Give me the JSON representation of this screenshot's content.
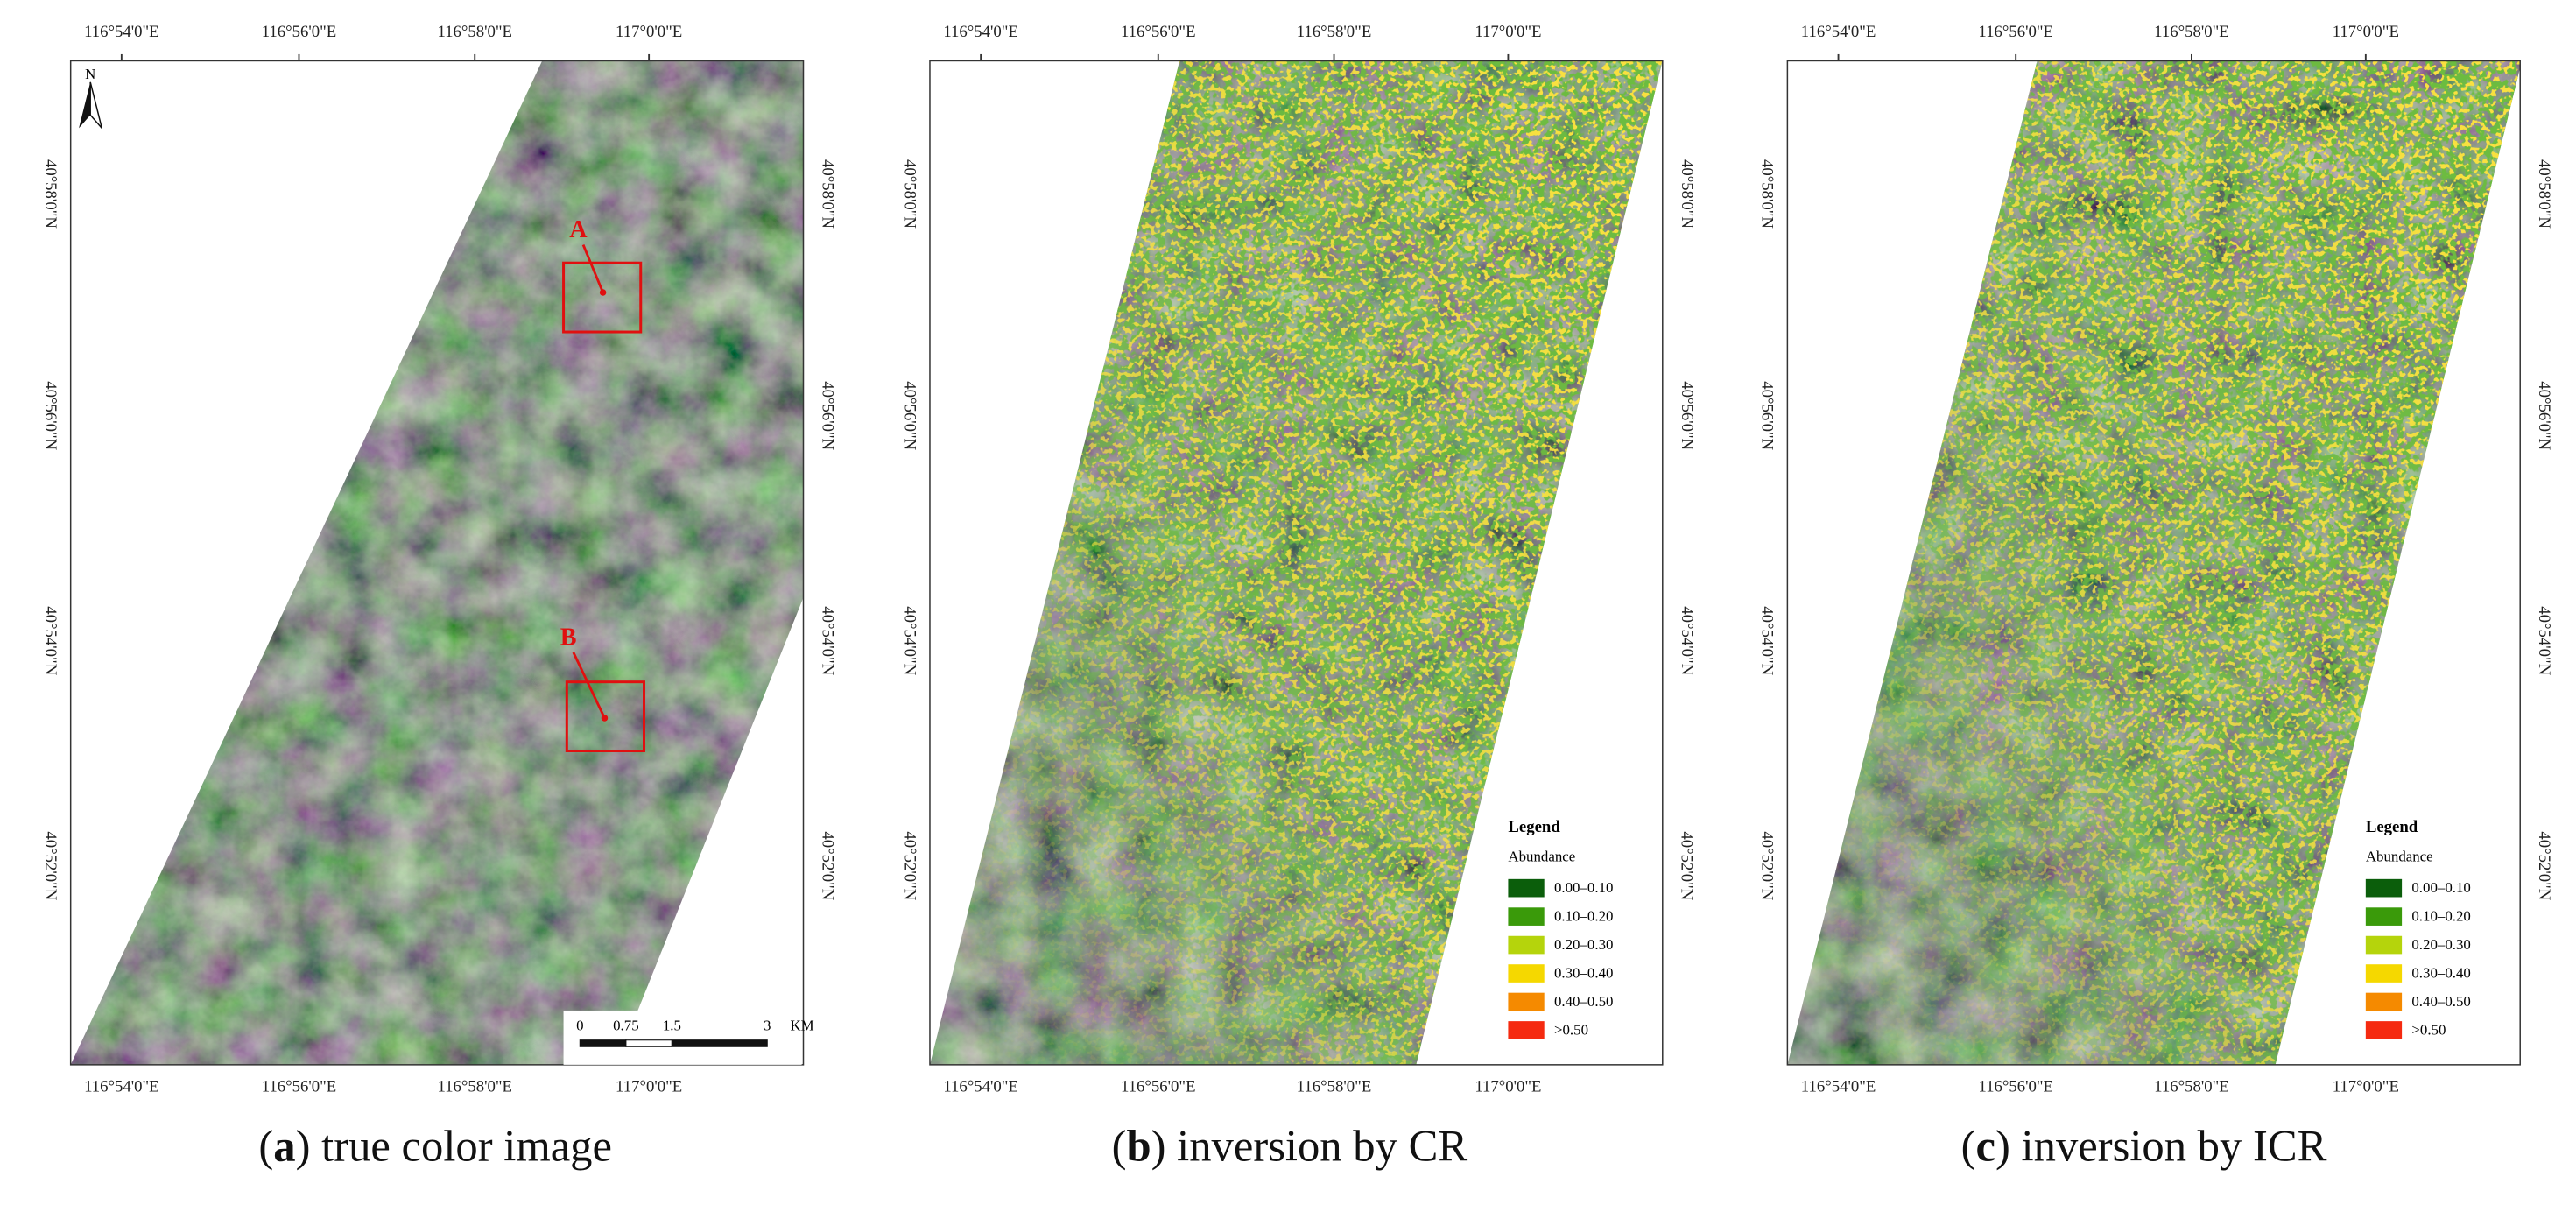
{
  "panels": [
    {
      "caption": {
        "open": "(",
        "letter": "a",
        "rest": ") true color image"
      },
      "top_ticks": [
        "116°54'0\"E",
        "116°56'0\"E",
        "116°58'0\"E",
        "117°0'0\"E"
      ],
      "bottom_ticks": [
        "116°54'0\"E",
        "116°56'0\"E",
        "116°58'0\"E",
        "117°0'0\"E"
      ],
      "left_ticks": [
        "40°58'0\"N",
        "40°56'0\"N",
        "40°54'0\"N",
        "40°52'0\"N"
      ],
      "right_ticks": [
        "40°58'0\"N",
        "40°56'0\"N",
        "40°54'0\"N",
        "40°52'0\"N"
      ],
      "north": "N",
      "annotations": [
        "A",
        "B"
      ],
      "scalebar": [
        "0",
        "0.75",
        "1.5",
        "3",
        "KM"
      ]
    },
    {
      "caption": {
        "open": "(",
        "letter": "b",
        "rest": ") inversion by CR"
      },
      "top_ticks": [
        "116°54'0\"E",
        "116°56'0\"E",
        "116°58'0\"E",
        "117°0'0\"E"
      ],
      "bottom_ticks": [
        "116°54'0\"E",
        "116°56'0\"E",
        "116°58'0\"E",
        "117°0'0\"E"
      ],
      "left_ticks": [
        "40°58'0\"N",
        "40°56'0\"N",
        "40°54'0\"N",
        "40°52'0\"N"
      ],
      "right_ticks": [
        "40°58'0\"N",
        "40°56'0\"N",
        "40°54'0\"N",
        "40°52'0\"N"
      ],
      "legend": {
        "title": "Legend",
        "subtitle": "Abundance",
        "items": [
          {
            "label": "0.00–0.10",
            "color": "#0b5e0b"
          },
          {
            "label": "0.10–0.20",
            "color": "#3a9a0a"
          },
          {
            "label": "0.20–0.30",
            "color": "#b5d40c"
          },
          {
            "label": "0.30–0.40",
            "color": "#f5d800"
          },
          {
            "label": "0.40–0.50",
            "color": "#f58a00"
          },
          {
            "label": ">0.50",
            "color": "#f52a10"
          }
        ]
      }
    },
    {
      "caption": {
        "open": "(",
        "letter": "c",
        "rest": ") inversion by ICR"
      },
      "top_ticks": [
        "116°54'0\"E",
        "116°56'0\"E",
        "116°58'0\"E",
        "117°0'0\"E"
      ],
      "bottom_ticks": [
        "116°54'0\"E",
        "116°56'0\"E",
        "116°58'0\"E",
        "117°0'0\"E"
      ],
      "left_ticks": [
        "40°58'0\"N",
        "40°56'0\"N",
        "40°54'0\"N",
        "40°52'0\"N"
      ],
      "right_ticks": [
        "40°58'0\"N",
        "40°56'0\"N",
        "40°54'0\"N",
        "40°52'0\"N"
      ],
      "legend": {
        "title": "Legend",
        "subtitle": "Abundance",
        "items": [
          {
            "label": "0.00–0.10",
            "color": "#0b5e0b"
          },
          {
            "label": "0.10–0.20",
            "color": "#3a9a0a"
          },
          {
            "label": "0.20–0.30",
            "color": "#b5d40c"
          },
          {
            "label": "0.30–0.40",
            "color": "#f5d800"
          },
          {
            "label": "0.40–0.50",
            "color": "#f58a00"
          },
          {
            "label": ">0.50",
            "color": "#f52a10"
          }
        ]
      }
    }
  ]
}
